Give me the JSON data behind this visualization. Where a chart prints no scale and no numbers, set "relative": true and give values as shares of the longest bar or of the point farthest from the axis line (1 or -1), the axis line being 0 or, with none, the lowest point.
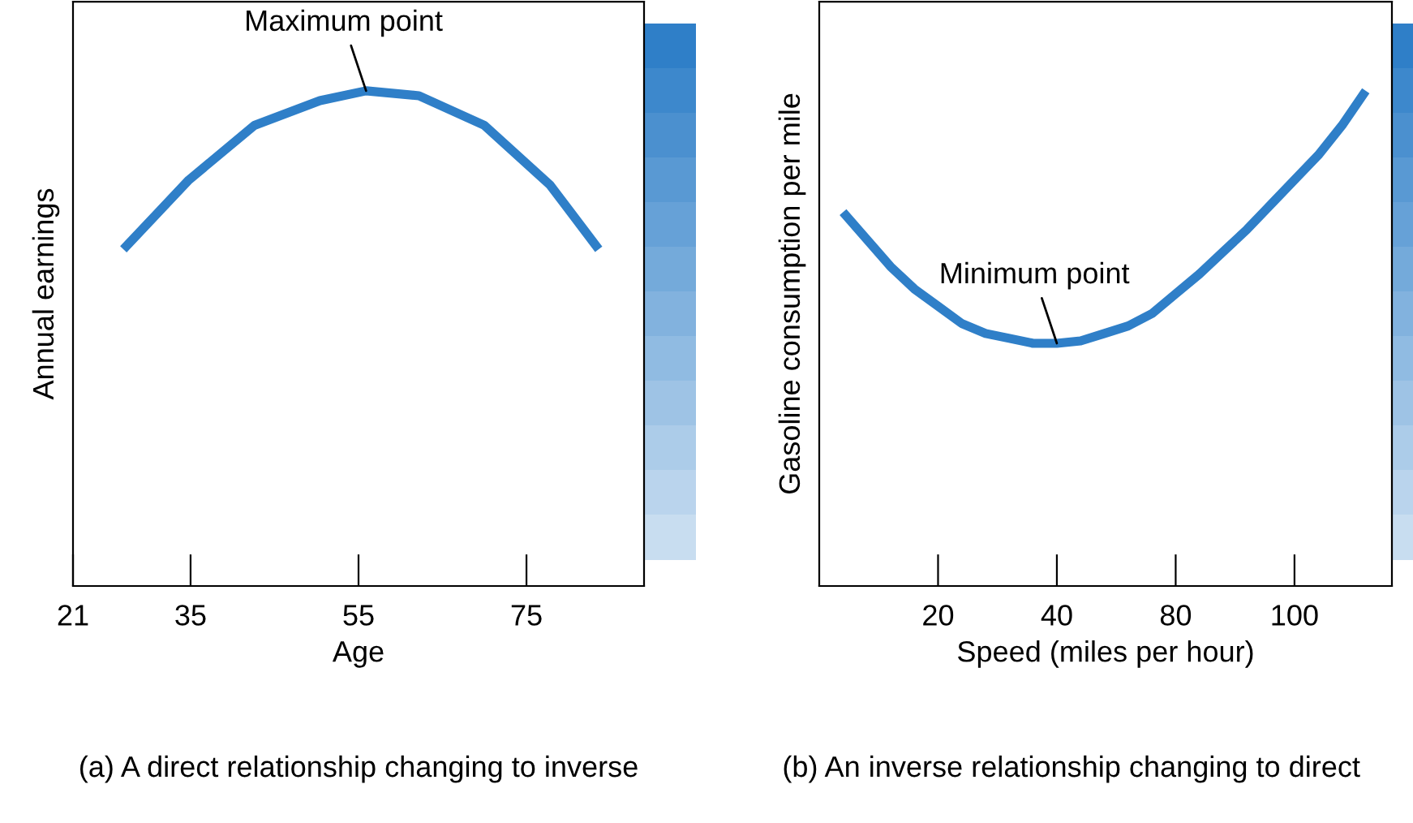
{
  "chart_data": [
    {
      "type": "line",
      "relative": true,
      "title": "(a) A direct relationship changing to inverse",
      "xlabel": "Age",
      "ylabel": "Annual earnings",
      "xlim": [
        21,
        89
      ],
      "xticks": [
        21,
        35,
        55,
        75
      ],
      "grid": false,
      "legend": false,
      "marker": "none",
      "line_style": "solid",
      "annotations": [
        {
          "text": "Maximum point",
          "x": 55.9,
          "y": 1
        }
      ],
      "series": [
        {
          "color": "#2f7fc8",
          "x": [
            27,
            34.8,
            42.6,
            50.4,
            55.9,
            62.2,
            70,
            77.8,
            83.6
          ],
          "values": [
            0.68,
            0.82,
            0.93,
            0.98,
            1,
            0.99,
            0.93,
            0.81,
            0.68
          ]
        }
      ]
    },
    {
      "type": "line",
      "relative": true,
      "title": "(b) An inverse relationship changing to direct",
      "xlabel": "Speed (miles per hour)",
      "ylabel": "Gasoline consumption per mile",
      "categories": [
        null,
        null,
        null,
        null,
        "20",
        null,
        null,
        null,
        null,
        "40",
        null,
        null,
        null,
        null,
        "80",
        null,
        null,
        null,
        null,
        "100",
        null,
        null,
        null
      ],
      "grid": false,
      "legend": false,
      "marker": "none",
      "line_style": "solid",
      "annotations": [
        {
          "text": "Minimum point",
          "x": "40",
          "y": 0.49
        }
      ],
      "series": [
        {
          "color": "#2f7fc8",
          "values": [
            0.755,
            0.7,
            0.645,
            0.6,
            0.565,
            0.53,
            0.51,
            0.5,
            0.49,
            0.49,
            0.495,
            0.51,
            0.525,
            0.55,
            0.59,
            0.63,
            0.675,
            0.72,
            0.77,
            0.82,
            0.87,
            0.93,
            1
          ]
        }
      ]
    }
  ]
}
